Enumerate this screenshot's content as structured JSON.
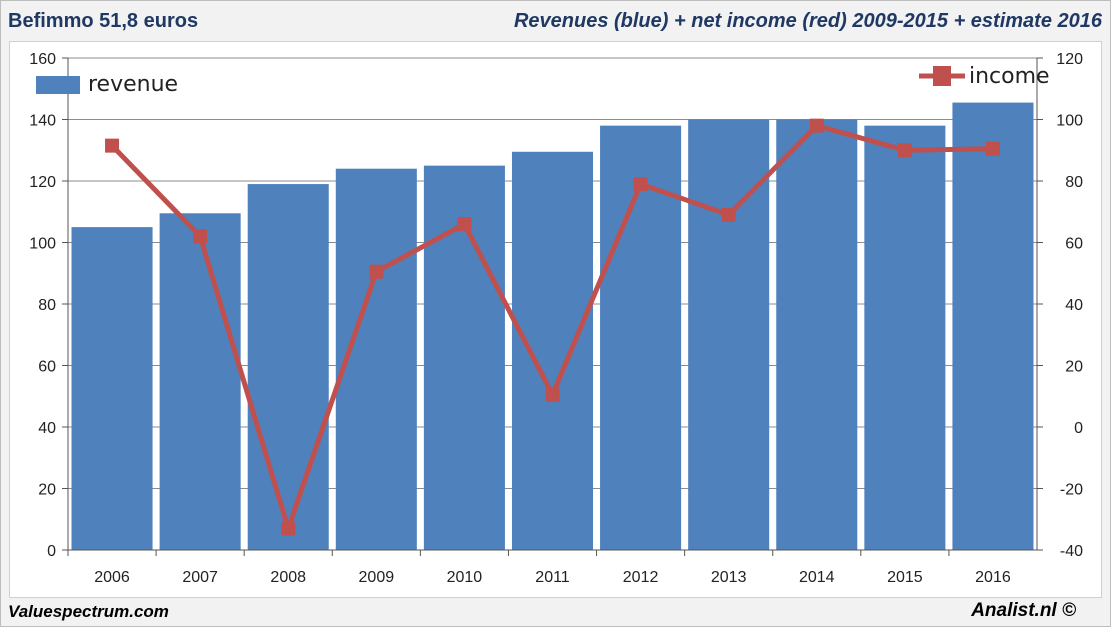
{
  "header": {
    "title_left": "Befimmo 51,8 euros",
    "title_right": "Revenues (blue) + net income (red) 2009-2015 + estimate 2016"
  },
  "footer": {
    "left": "Valuespectrum.com",
    "right": "Analist.nl ©"
  },
  "colors": {
    "revenue": "#4f81bd",
    "income": "#c0504d",
    "header_text": "#1f3864"
  },
  "legend": {
    "revenue_label": "revenue",
    "income_label": "income",
    "revenue_icon": "blue-rectangle",
    "income_icon": "red-plus-line-marker"
  },
  "chart_data": {
    "type": "bar",
    "categories": [
      "2006",
      "2007",
      "2008",
      "2009",
      "2010",
      "2011",
      "2012",
      "2013",
      "2014",
      "2015",
      "2016"
    ],
    "series": [
      {
        "name": "revenue",
        "type": "bar",
        "axis": "left",
        "values": [
          105,
          109.5,
          119,
          124,
          125,
          129.5,
          138,
          140,
          140,
          138,
          145.5
        ]
      },
      {
        "name": "income",
        "type": "line",
        "axis": "right",
        "values": [
          91.5,
          62,
          -33,
          50.5,
          66,
          10.5,
          79,
          69,
          98,
          90,
          90.5
        ]
      }
    ],
    "y_left": {
      "min": 0,
      "max": 160,
      "ticks": [
        "0",
        "20",
        "40",
        "60",
        "80",
        "100",
        "120",
        "140",
        "160"
      ]
    },
    "y_right": {
      "min": -40,
      "max": 120,
      "ticks": [
        "-40",
        "-20",
        "0",
        "20",
        "40",
        "60",
        "80",
        "100",
        "120"
      ]
    },
    "grid": true,
    "legend_placement": "top-left and top-right"
  }
}
